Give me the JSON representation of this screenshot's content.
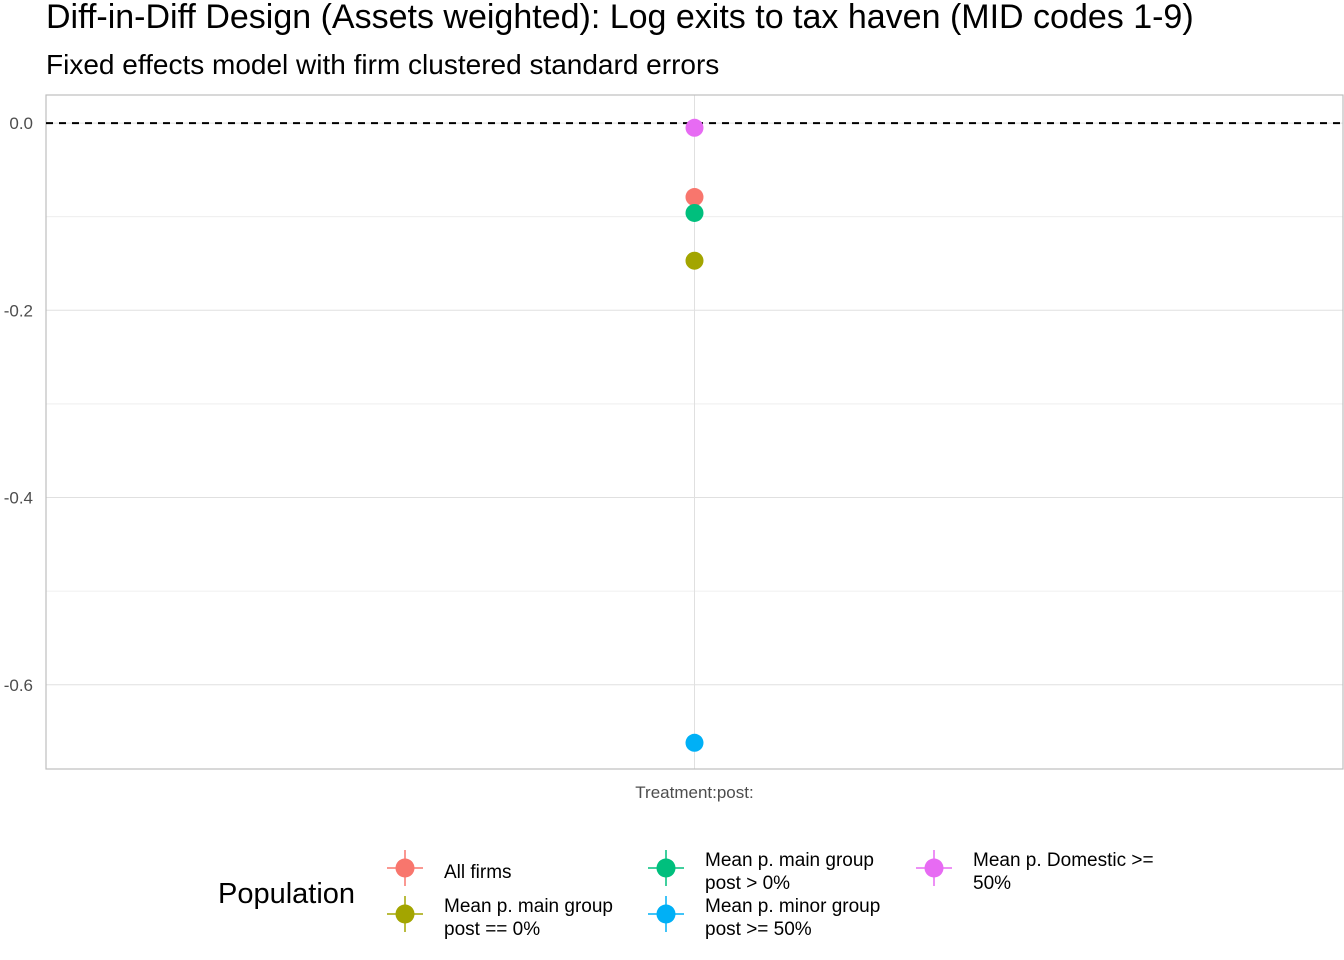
{
  "chart_data": {
    "type": "scatter",
    "title": "Diff-in-Diff Design (Assets weighted): Log exits to tax haven (MID codes 1-9)",
    "subtitle": "Fixed effects model with firm clustered standard errors",
    "xlabel": "",
    "ylabel": "",
    "categories": [
      "Treatment:post:"
    ],
    "ylim": [
      -0.69,
      0.03
    ],
    "yticks": [
      {
        "value": 0.0,
        "label": "0.0"
      },
      {
        "value": -0.2,
        "label": "-0.2"
      },
      {
        "value": -0.4,
        "label": "-0.4"
      },
      {
        "value": -0.6,
        "label": "-0.6"
      }
    ],
    "minor_yticks": [
      -0.1,
      -0.3,
      -0.5
    ],
    "reference_line": {
      "value": 0.0,
      "style": "dashed"
    },
    "grid": true,
    "legend": {
      "title": "Population",
      "position": "bottom",
      "entries": [
        {
          "label_lines": [
            "All firms"
          ],
          "color": "#F8766D"
        },
        {
          "label_lines": [
            "Mean p. main group",
            "post == 0%"
          ],
          "color": "#A3A500"
        },
        {
          "label_lines": [
            "Mean p. main group",
            "post > 0%"
          ],
          "color": "#00BF7D"
        },
        {
          "label_lines": [
            "Mean p. minor group",
            "post >= 50%"
          ],
          "color": "#00B0F6"
        },
        {
          "label_lines": [
            "Mean p. Domestic >=",
            "50%"
          ],
          "color": "#E76BF3"
        }
      ]
    },
    "series": [
      {
        "name": "All firms",
        "color": "#F8766D",
        "x": "Treatment:post:",
        "y": -0.079
      },
      {
        "name": "Mean p. main group post == 0%",
        "color": "#A3A500",
        "x": "Treatment:post:",
        "y": -0.147
      },
      {
        "name": "Mean p. main group post > 0%",
        "color": "#00BF7D",
        "x": "Treatment:post:",
        "y": -0.096
      },
      {
        "name": "Mean p. minor group post >= 50%",
        "color": "#00B0F6",
        "x": "Treatment:post:",
        "y": -0.662
      },
      {
        "name": "Mean p. Domestic >= 50%",
        "color": "#E76BF3",
        "x": "Treatment:post:",
        "y": -0.005
      }
    ]
  }
}
